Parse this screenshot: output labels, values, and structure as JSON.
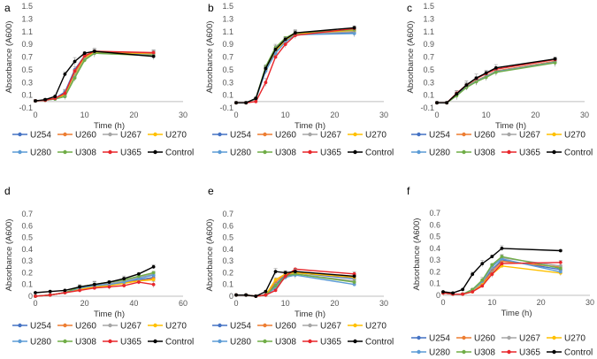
{
  "series_styles": [
    {
      "name": "U254",
      "color": "#4472c4"
    },
    {
      "name": "U260",
      "color": "#ed7d31"
    },
    {
      "name": "U267",
      "color": "#a5a5a5"
    },
    {
      "name": "U270",
      "color": "#ffc000"
    },
    {
      "name": "U280",
      "color": "#5b9bd5"
    },
    {
      "name": "U308",
      "color": "#70ad47"
    },
    {
      "name": "U365",
      "color": "#e8262b"
    },
    {
      "name": "Control",
      "color": "#000000"
    }
  ],
  "chart_data": [
    {
      "label": "a",
      "type": "line",
      "xlabel": "Time (h)",
      "ylabel": "Absorbance (A600)",
      "xlim": [
        0,
        30
      ],
      "xticks": [
        0,
        10,
        20,
        30
      ],
      "ylim": [
        -0.1,
        1.5
      ],
      "yticks": [
        -0.1,
        0.1,
        0.3,
        0.5,
        0.7,
        0.9,
        1.1,
        1.3,
        1.5
      ],
      "x": [
        0,
        2,
        4,
        6,
        8,
        10,
        12,
        24
      ],
      "series": [
        {
          "name": "U254",
          "values": [
            0.01,
            0.02,
            0.05,
            0.15,
            0.5,
            0.72,
            0.78,
            0.75
          ]
        },
        {
          "name": "U260",
          "values": [
            0.01,
            0.02,
            0.05,
            0.12,
            0.45,
            0.7,
            0.78,
            0.76
          ]
        },
        {
          "name": "U267",
          "values": [
            0.01,
            0.02,
            0.05,
            0.1,
            0.42,
            0.68,
            0.77,
            0.74
          ]
        },
        {
          "name": "U270",
          "values": [
            0.01,
            0.02,
            0.05,
            0.1,
            0.4,
            0.68,
            0.77,
            0.74
          ]
        },
        {
          "name": "U280",
          "values": [
            0.01,
            0.02,
            0.04,
            0.08,
            0.38,
            0.66,
            0.76,
            0.73
          ]
        },
        {
          "name": "U308",
          "values": [
            0.01,
            0.02,
            0.04,
            0.08,
            0.37,
            0.65,
            0.76,
            0.72
          ]
        },
        {
          "name": "U365",
          "values": [
            0.01,
            0.02,
            0.05,
            0.13,
            0.48,
            0.72,
            0.79,
            0.77
          ]
        },
        {
          "name": "Control",
          "values": [
            0.01,
            0.03,
            0.08,
            0.43,
            0.63,
            0.76,
            0.79,
            0.71
          ]
        }
      ]
    },
    {
      "label": "b",
      "type": "line",
      "xlabel": "Time (h)",
      "ylabel": "Absorbance (A600)",
      "xlim": [
        0,
        30
      ],
      "xticks": [
        0,
        10,
        20,
        30
      ],
      "ylim": [
        -0.1,
        1.5
      ],
      "yticks": [
        -0.1,
        0.1,
        0.3,
        0.5,
        0.7,
        0.9,
        1.1,
        1.3,
        1.5
      ],
      "x": [
        0,
        2,
        4,
        6,
        8,
        10,
        12,
        24
      ],
      "series": [
        {
          "name": "U254",
          "values": [
            -0.02,
            -0.02,
            0.04,
            0.5,
            0.78,
            0.95,
            1.06,
            1.08
          ]
        },
        {
          "name": "U260",
          "values": [
            -0.02,
            -0.02,
            0.04,
            0.5,
            0.78,
            0.95,
            1.06,
            1.1
          ]
        },
        {
          "name": "U267",
          "values": [
            -0.02,
            -0.02,
            0.04,
            0.5,
            0.78,
            0.95,
            1.06,
            1.1
          ]
        },
        {
          "name": "U270",
          "values": [
            -0.02,
            -0.02,
            0.04,
            0.5,
            0.8,
            0.96,
            1.07,
            1.12
          ]
        },
        {
          "name": "U280",
          "values": [
            -0.02,
            -0.02,
            0.04,
            0.48,
            0.76,
            0.94,
            1.05,
            1.07
          ]
        },
        {
          "name": "U308",
          "values": [
            -0.02,
            -0.02,
            0.05,
            0.55,
            0.85,
            1.0,
            1.08,
            1.13
          ]
        },
        {
          "name": "U365",
          "values": [
            -0.02,
            -0.02,
            0.0,
            0.3,
            0.7,
            0.9,
            1.04,
            1.15
          ]
        },
        {
          "name": "Control",
          "values": [
            -0.02,
            -0.02,
            0.05,
            0.52,
            0.82,
            0.98,
            1.08,
            1.16
          ]
        }
      ]
    },
    {
      "label": "c",
      "type": "line",
      "xlabel": "Time (h)",
      "ylabel": "Absorbance (A600)",
      "xlim": [
        0,
        30
      ],
      "xticks": [
        0,
        10,
        20,
        30
      ],
      "ylim": [
        -0.1,
        1.5
      ],
      "yticks": [
        -0.1,
        0.1,
        0.3,
        0.5,
        0.7,
        0.9,
        1.1,
        1.3,
        1.5
      ],
      "x": [
        0,
        2,
        4,
        6,
        8,
        10,
        12,
        24
      ],
      "series": [
        {
          "name": "U254",
          "values": [
            -0.02,
            -0.02,
            0.11,
            0.24,
            0.33,
            0.4,
            0.48,
            0.63
          ]
        },
        {
          "name": "U260",
          "values": [
            -0.02,
            -0.02,
            0.11,
            0.24,
            0.33,
            0.4,
            0.48,
            0.63
          ]
        },
        {
          "name": "U267",
          "values": [
            -0.02,
            -0.02,
            0.1,
            0.23,
            0.32,
            0.39,
            0.47,
            0.62
          ]
        },
        {
          "name": "U270",
          "values": [
            -0.02,
            -0.02,
            0.1,
            0.23,
            0.32,
            0.39,
            0.47,
            0.62
          ]
        },
        {
          "name": "U280",
          "values": [
            -0.02,
            -0.02,
            0.1,
            0.23,
            0.32,
            0.39,
            0.47,
            0.62
          ]
        },
        {
          "name": "U308",
          "values": [
            -0.02,
            -0.02,
            0.09,
            0.22,
            0.31,
            0.38,
            0.46,
            0.61
          ]
        },
        {
          "name": "U365",
          "values": [
            -0.02,
            -0.02,
            0.13,
            0.26,
            0.36,
            0.44,
            0.51,
            0.66
          ]
        },
        {
          "name": "Control",
          "values": [
            -0.02,
            -0.02,
            0.12,
            0.26,
            0.37,
            0.45,
            0.53,
            0.67
          ]
        }
      ]
    },
    {
      "label": "d",
      "type": "line",
      "xlabel": "Time (h)",
      "ylabel": "Absorbance (A600)",
      "xlim": [
        0,
        60
      ],
      "xticks": [
        0,
        20,
        40,
        60
      ],
      "ylim": [
        0,
        0.7
      ],
      "yticks": [
        0,
        0.1,
        0.2,
        0.3,
        0.4,
        0.5,
        0.6,
        0.7
      ],
      "x": [
        0,
        6,
        12,
        18,
        24,
        30,
        36,
        42,
        48
      ],
      "series": [
        {
          "name": "U254",
          "values": [
            0.0,
            0.01,
            0.03,
            0.07,
            0.09,
            0.1,
            0.12,
            0.14,
            0.16
          ]
        },
        {
          "name": "U260",
          "values": [
            0.0,
            0.01,
            0.03,
            0.06,
            0.08,
            0.1,
            0.12,
            0.13,
            0.15
          ]
        },
        {
          "name": "U267",
          "values": [
            0.0,
            0.01,
            0.03,
            0.08,
            0.1,
            0.11,
            0.13,
            0.16,
            0.19
          ]
        },
        {
          "name": "U270",
          "values": [
            0.0,
            0.01,
            0.03,
            0.06,
            0.08,
            0.09,
            0.11,
            0.13,
            0.14
          ]
        },
        {
          "name": "U280",
          "values": [
            0.0,
            0.01,
            0.03,
            0.07,
            0.09,
            0.1,
            0.12,
            0.15,
            0.18
          ]
        },
        {
          "name": "U308",
          "values": [
            0.0,
            0.01,
            0.03,
            0.08,
            0.1,
            0.12,
            0.14,
            0.17,
            0.2
          ]
        },
        {
          "name": "U365",
          "values": [
            0.0,
            0.01,
            0.03,
            0.05,
            0.07,
            0.08,
            0.09,
            0.12,
            0.1
          ]
        },
        {
          "name": "Control",
          "values": [
            0.03,
            0.04,
            0.05,
            0.08,
            0.1,
            0.12,
            0.15,
            0.19,
            0.25
          ]
        }
      ]
    },
    {
      "label": "e",
      "type": "line",
      "xlabel": "Time (h)",
      "ylabel": "Absorbance (A600)",
      "xlim": [
        0,
        30
      ],
      "xticks": [
        0,
        10,
        20,
        30
      ],
      "ylim": [
        0,
        0.7
      ],
      "yticks": [
        0,
        0.1,
        0.2,
        0.3,
        0.4,
        0.5,
        0.6,
        0.7
      ],
      "x": [
        0,
        2,
        4,
        6,
        8,
        10,
        12,
        24
      ],
      "series": [
        {
          "name": "U254",
          "values": [
            0.01,
            0.01,
            0.0,
            0.01,
            0.1,
            0.18,
            0.2,
            0.15
          ]
        },
        {
          "name": "U260",
          "values": [
            0.01,
            0.01,
            0.0,
            0.01,
            0.12,
            0.19,
            0.2,
            0.17
          ]
        },
        {
          "name": "U267",
          "values": [
            0.01,
            0.01,
            0.0,
            0.01,
            0.08,
            0.17,
            0.19,
            0.13
          ]
        },
        {
          "name": "U270",
          "values": [
            0.01,
            0.01,
            0.0,
            0.01,
            0.14,
            0.19,
            0.2,
            0.16
          ]
        },
        {
          "name": "U280",
          "values": [
            0.01,
            0.01,
            0.0,
            0.01,
            0.07,
            0.16,
            0.18,
            0.1
          ]
        },
        {
          "name": "U308",
          "values": [
            0.01,
            0.01,
            0.0,
            0.01,
            0.09,
            0.17,
            0.19,
            0.12
          ]
        },
        {
          "name": "U365",
          "values": [
            0.01,
            0.01,
            0.0,
            0.01,
            0.05,
            0.17,
            0.23,
            0.19
          ]
        },
        {
          "name": "Control",
          "values": [
            0.01,
            0.01,
            0.0,
            0.04,
            0.21,
            0.2,
            0.21,
            0.17
          ]
        }
      ]
    },
    {
      "label": "f",
      "type": "line",
      "xlabel": "Time (h)",
      "ylabel": "Absorbance (A600)",
      "xlim": [
        0,
        30
      ],
      "xticks": [
        0,
        10,
        20,
        30
      ],
      "ylim": [
        0,
        0.7
      ],
      "yticks": [
        0,
        0.1,
        0.2,
        0.3,
        0.4,
        0.5,
        0.6,
        0.7
      ],
      "x": [
        0,
        2,
        4,
        6,
        8,
        10,
        12,
        24
      ],
      "series": [
        {
          "name": "U254",
          "values": [
            0.02,
            0.01,
            0.01,
            0.04,
            0.1,
            0.22,
            0.3,
            0.22
          ]
        },
        {
          "name": "U260",
          "values": [
            0.02,
            0.01,
            0.01,
            0.04,
            0.1,
            0.2,
            0.29,
            0.24
          ]
        },
        {
          "name": "U267",
          "values": [
            0.02,
            0.01,
            0.01,
            0.04,
            0.11,
            0.24,
            0.32,
            0.25
          ]
        },
        {
          "name": "U270",
          "values": [
            0.02,
            0.01,
            0.01,
            0.03,
            0.09,
            0.18,
            0.25,
            0.19
          ]
        },
        {
          "name": "U280",
          "values": [
            0.02,
            0.01,
            0.01,
            0.05,
            0.12,
            0.25,
            0.31,
            0.2
          ]
        },
        {
          "name": "U308",
          "values": [
            0.02,
            0.01,
            0.01,
            0.05,
            0.13,
            0.26,
            0.33,
            0.23
          ]
        },
        {
          "name": "U365",
          "values": [
            0.02,
            0.01,
            0.01,
            0.03,
            0.08,
            0.18,
            0.27,
            0.28
          ]
        },
        {
          "name": "Control",
          "values": [
            0.03,
            0.02,
            0.05,
            0.18,
            0.27,
            0.33,
            0.4,
            0.38
          ]
        }
      ]
    }
  ]
}
